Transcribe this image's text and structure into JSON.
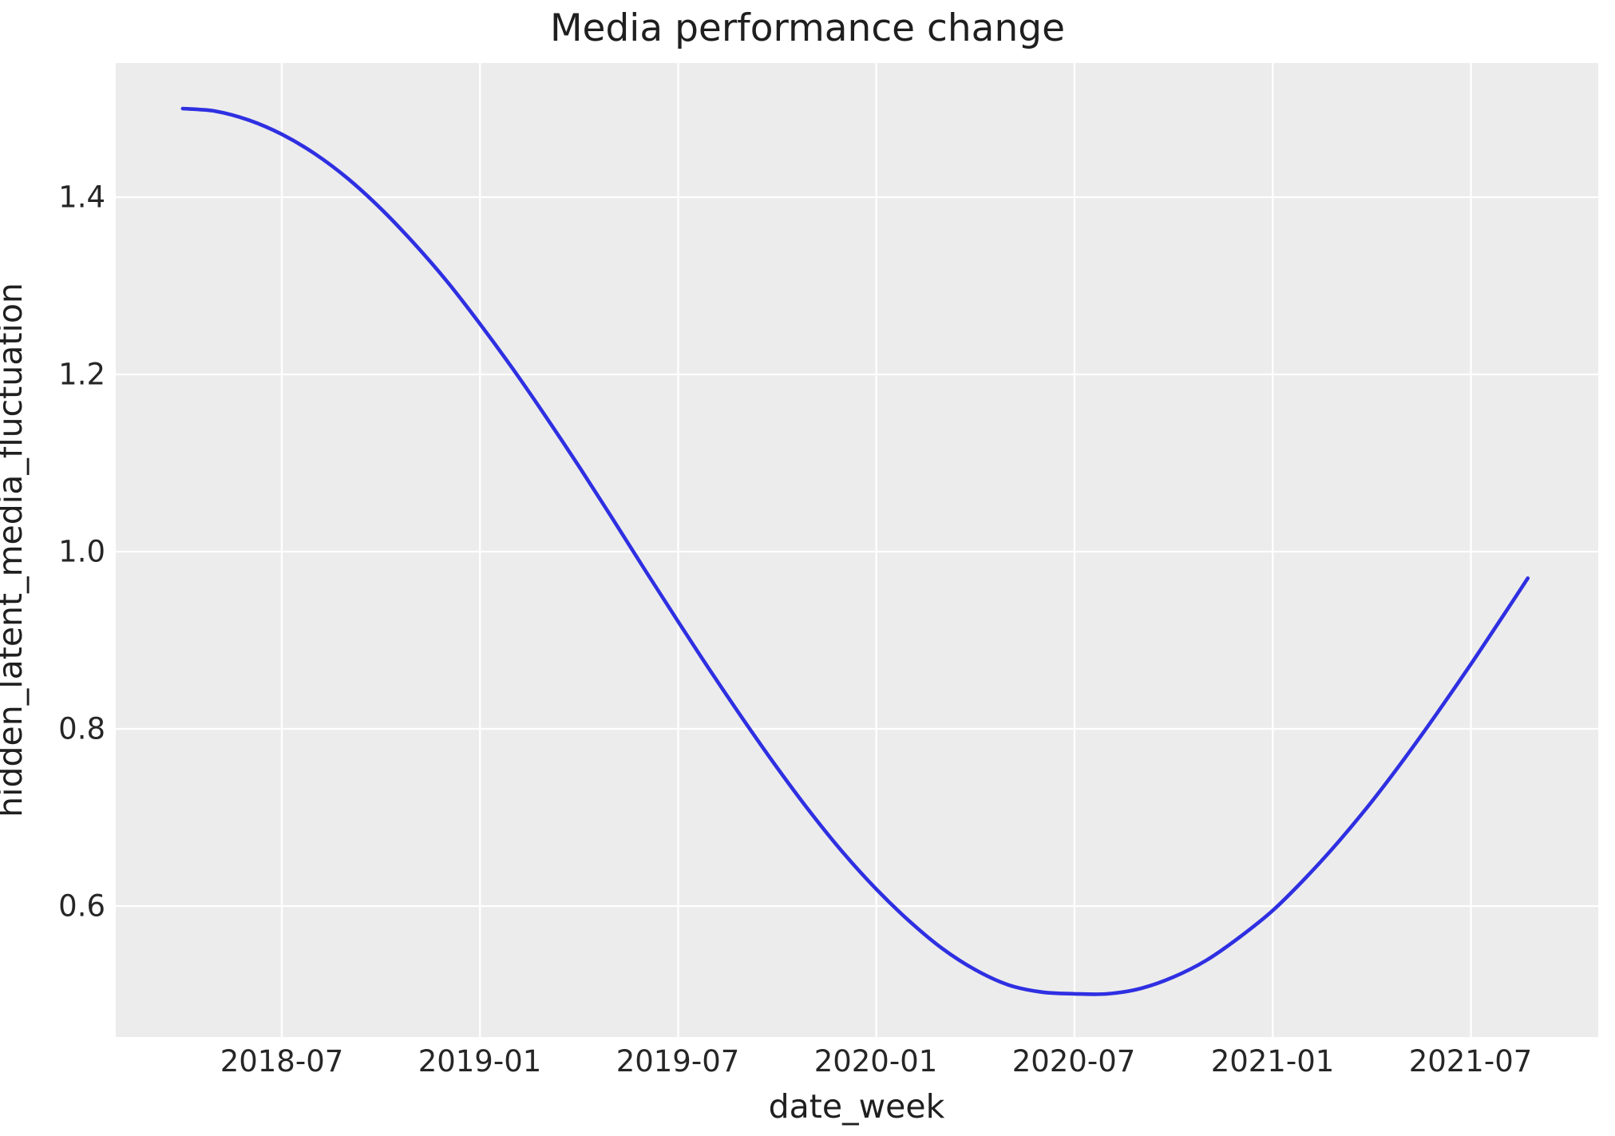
{
  "figure": {
    "title": "Media performance change",
    "xlabel": "date_week",
    "ylabel": "hidden_latent_media_fluctuation"
  },
  "colors": {
    "line": "#2f2fe2",
    "axes_background": "#ececec",
    "grid": "#ffffff",
    "text": "#262626",
    "figure_background": "#ffffff"
  },
  "chart_data": {
    "type": "line",
    "title": "Media performance change",
    "xlabel": "date_week",
    "ylabel": "hidden_latent_media_fluctuation",
    "grid": true,
    "legend": "none",
    "x_tick_labels": [
      "2018-07",
      "2019-01",
      "2019-07",
      "2020-01",
      "2020-07",
      "2021-01",
      "2021-07"
    ],
    "y_tick_labels": [
      "1.4",
      "1.2",
      "1.0",
      "0.8",
      "0.6"
    ],
    "y_ticks": [
      1.4,
      1.2,
      1.0,
      0.8,
      0.6
    ],
    "ylim": [
      0.452,
      1.551
    ],
    "xlim_dates": [
      "2018-01-30",
      "2021-10-27"
    ],
    "series": [
      {
        "name": "hidden_latent_media_fluctuation",
        "color": "#2f2fe2",
        "points": [
          {
            "date": "2018-04-01",
            "value": 1.5
          },
          {
            "date": "2018-05-01",
            "value": 1.497
          },
          {
            "date": "2018-06-01",
            "value": 1.487
          },
          {
            "date": "2018-07-01",
            "value": 1.471
          },
          {
            "date": "2018-08-01",
            "value": 1.449
          },
          {
            "date": "2018-09-01",
            "value": 1.421
          },
          {
            "date": "2018-10-01",
            "value": 1.387
          },
          {
            "date": "2018-11-01",
            "value": 1.348
          },
          {
            "date": "2018-12-01",
            "value": 1.305
          },
          {
            "date": "2019-01-01",
            "value": 1.257
          },
          {
            "date": "2019-02-01",
            "value": 1.206
          },
          {
            "date": "2019-03-01",
            "value": 1.152
          },
          {
            "date": "2019-04-01",
            "value": 1.096
          },
          {
            "date": "2019-05-01",
            "value": 1.038
          },
          {
            "date": "2019-06-01",
            "value": 0.979
          },
          {
            "date": "2019-07-01",
            "value": 0.921
          },
          {
            "date": "2019-08-01",
            "value": 0.864
          },
          {
            "date": "2019-09-01",
            "value": 0.809
          },
          {
            "date": "2019-10-01",
            "value": 0.756
          },
          {
            "date": "2019-11-01",
            "value": 0.706
          },
          {
            "date": "2019-12-01",
            "value": 0.66
          },
          {
            "date": "2020-01-01",
            "value": 0.619
          },
          {
            "date": "2020-02-01",
            "value": 0.583
          },
          {
            "date": "2020-03-01",
            "value": 0.552
          },
          {
            "date": "2020-04-01",
            "value": 0.528
          },
          {
            "date": "2020-05-01",
            "value": 0.511
          },
          {
            "date": "2020-06-01",
            "value": 0.503
          },
          {
            "date": "2020-07-01",
            "value": 0.501
          },
          {
            "date": "2020-08-01",
            "value": 0.501
          },
          {
            "date": "2020-09-01",
            "value": 0.507
          },
          {
            "date": "2020-10-01",
            "value": 0.52
          },
          {
            "date": "2020-11-01",
            "value": 0.539
          },
          {
            "date": "2020-12-01",
            "value": 0.565
          },
          {
            "date": "2021-01-01",
            "value": 0.595
          },
          {
            "date": "2021-02-01",
            "value": 0.632
          },
          {
            "date": "2021-03-01",
            "value": 0.673
          },
          {
            "date": "2021-04-01",
            "value": 0.718
          },
          {
            "date": "2021-05-01",
            "value": 0.767
          },
          {
            "date": "2021-06-01",
            "value": 0.819
          },
          {
            "date": "2021-07-01",
            "value": 0.873
          },
          {
            "date": "2021-08-01",
            "value": 0.929
          },
          {
            "date": "2021-08-23",
            "value": 0.97
          }
        ]
      }
    ]
  }
}
